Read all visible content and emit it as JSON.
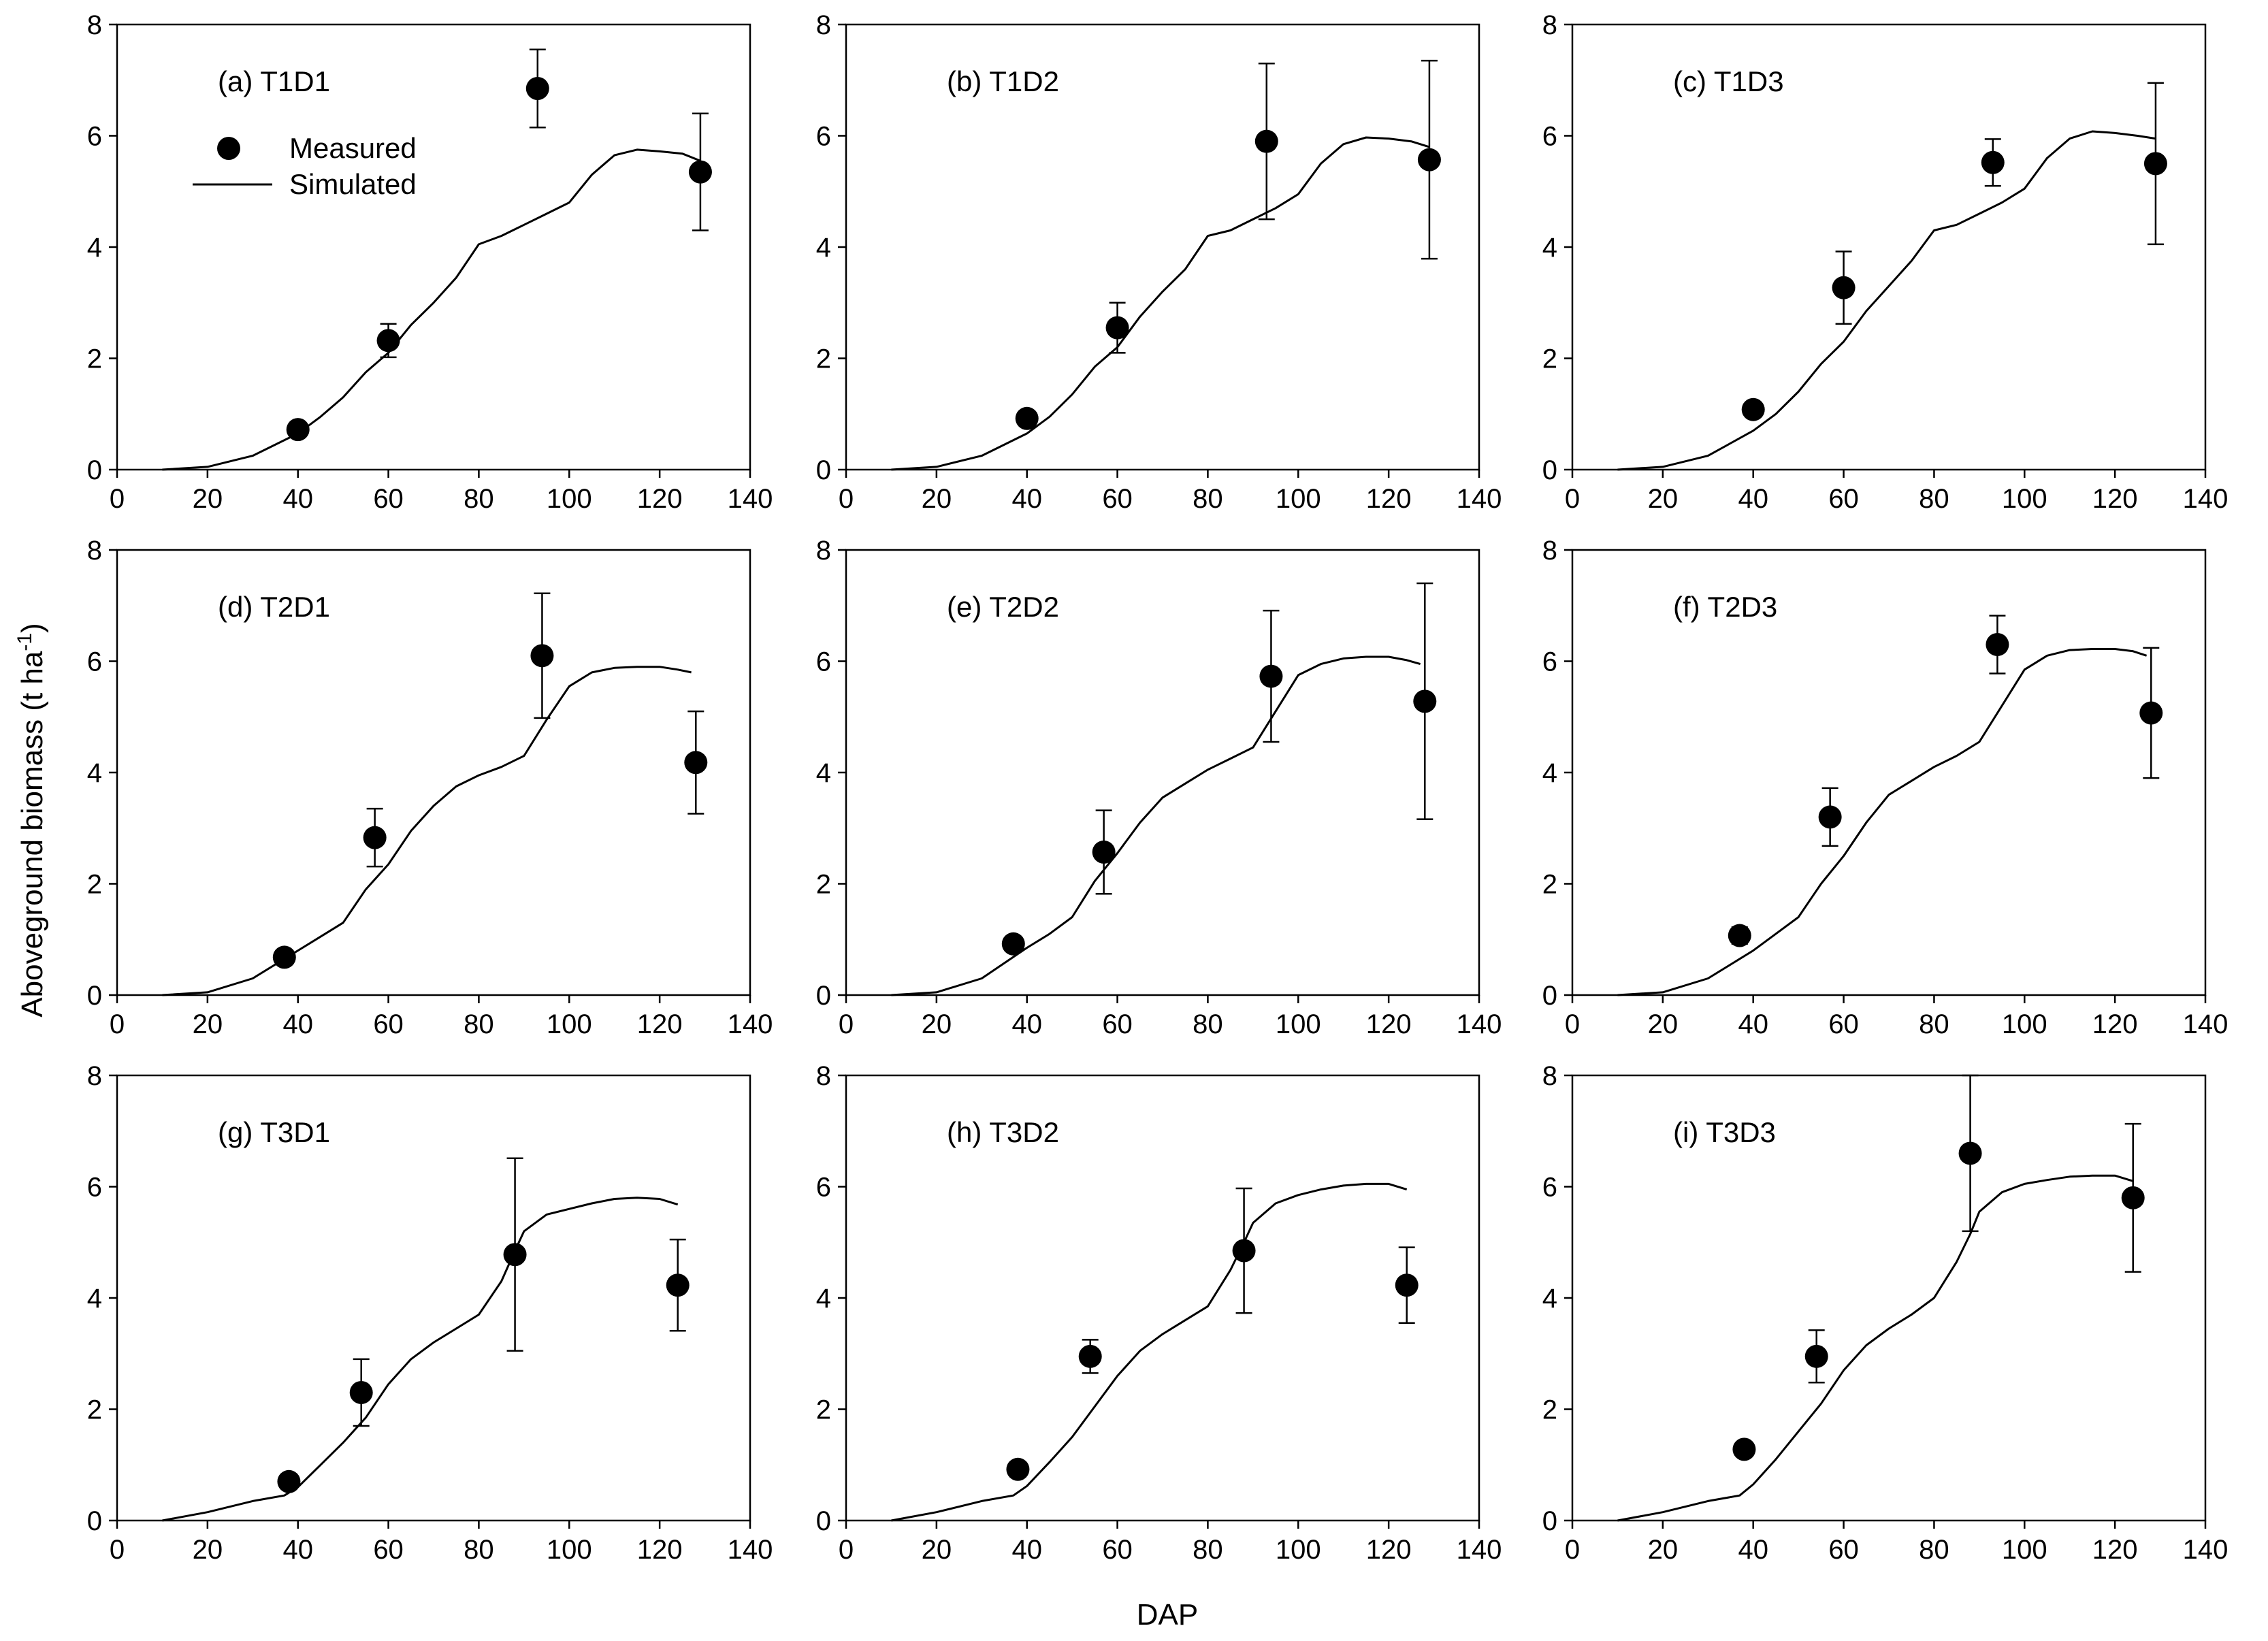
{
  "figure": {
    "ylabel": "Aboveground biomass (t ha",
    "ylabel_sup": "-1",
    "ylabel_close": ")",
    "xlabel": "DAP",
    "legend": {
      "measured": "Measured",
      "simulated": "Simulated"
    }
  },
  "chart_data": [
    {
      "type": "scatter",
      "title": "(a) T1D1",
      "xlim": [
        0,
        140
      ],
      "ylim": [
        0,
        8
      ],
      "xticks": [
        0,
        20,
        40,
        60,
        80,
        100,
        120,
        140
      ],
      "yticks": [
        0,
        2,
        4,
        6,
        8
      ],
      "measured": [
        {
          "x": 40,
          "y": 0.72,
          "err": 0.1
        },
        {
          "x": 60,
          "y": 2.32,
          "err": 0.3
        },
        {
          "x": 93,
          "y": 6.85,
          "err": 0.7
        },
        {
          "x": 129,
          "y": 5.35,
          "err": 1.05
        }
      ],
      "simulated": {
        "x": [
          10,
          20,
          30,
          40,
          45,
          50,
          55,
          60,
          65,
          70,
          75,
          80,
          85,
          90,
          95,
          100,
          105,
          110,
          115,
          120,
          125,
          129
        ],
        "y": [
          0,
          0.05,
          0.25,
          0.65,
          0.95,
          1.3,
          1.75,
          2.1,
          2.6,
          3.0,
          3.45,
          4.05,
          4.2,
          4.4,
          4.6,
          4.8,
          5.3,
          5.65,
          5.75,
          5.72,
          5.68,
          5.55
        ]
      }
    },
    {
      "type": "scatter",
      "title": "(b) T1D2",
      "xlim": [
        0,
        140
      ],
      "ylim": [
        0,
        8
      ],
      "xticks": [
        0,
        20,
        40,
        60,
        80,
        100,
        120,
        140
      ],
      "yticks": [
        0,
        2,
        4,
        6,
        8
      ],
      "measured": [
        {
          "x": 40,
          "y": 0.92,
          "err": 0.1
        },
        {
          "x": 60,
          "y": 2.55,
          "err": 0.45
        },
        {
          "x": 93,
          "y": 5.9,
          "err": 1.4
        },
        {
          "x": 129,
          "y": 5.57,
          "err": 1.78
        }
      ],
      "simulated": {
        "x": [
          10,
          20,
          30,
          40,
          45,
          50,
          55,
          60,
          65,
          70,
          75,
          80,
          85,
          90,
          95,
          100,
          105,
          110,
          115,
          120,
          125,
          129
        ],
        "y": [
          0,
          0.05,
          0.25,
          0.65,
          0.95,
          1.35,
          1.85,
          2.2,
          2.75,
          3.2,
          3.6,
          4.2,
          4.3,
          4.5,
          4.7,
          4.95,
          5.5,
          5.85,
          5.97,
          5.95,
          5.9,
          5.8
        ]
      }
    },
    {
      "type": "scatter",
      "title": "(c) T1D3",
      "xlim": [
        0,
        140
      ],
      "ylim": [
        0,
        8
      ],
      "xticks": [
        0,
        20,
        40,
        60,
        80,
        100,
        120,
        140
      ],
      "yticks": [
        0,
        2,
        4,
        6,
        8
      ],
      "measured": [
        {
          "x": 40,
          "y": 1.08,
          "err": 0.1
        },
        {
          "x": 60,
          "y": 3.27,
          "err": 0.65
        },
        {
          "x": 93,
          "y": 5.52,
          "err": 0.42
        },
        {
          "x": 129,
          "y": 5.5,
          "err": 1.45
        }
      ],
      "simulated": {
        "x": [
          10,
          20,
          30,
          40,
          45,
          50,
          55,
          60,
          65,
          70,
          75,
          80,
          85,
          90,
          95,
          100,
          105,
          110,
          115,
          120,
          125,
          129
        ],
        "y": [
          0,
          0.05,
          0.25,
          0.7,
          1.0,
          1.4,
          1.9,
          2.3,
          2.85,
          3.3,
          3.75,
          4.3,
          4.4,
          4.6,
          4.8,
          5.05,
          5.6,
          5.95,
          6.08,
          6.05,
          6.0,
          5.95
        ]
      }
    },
    {
      "type": "scatter",
      "title": "(d) T2D1",
      "xlim": [
        0,
        140
      ],
      "ylim": [
        0,
        8
      ],
      "xticks": [
        0,
        20,
        40,
        60,
        80,
        100,
        120,
        140
      ],
      "yticks": [
        0,
        2,
        4,
        6,
        8
      ],
      "measured": [
        {
          "x": 37,
          "y": 0.68,
          "err": 0.1
        },
        {
          "x": 57,
          "y": 2.83,
          "err": 0.52
        },
        {
          "x": 94,
          "y": 6.1,
          "err": 1.12
        },
        {
          "x": 128,
          "y": 4.18,
          "err": 0.92
        }
      ],
      "simulated": {
        "x": [
          10,
          20,
          30,
          40,
          45,
          50,
          55,
          60,
          65,
          70,
          75,
          80,
          85,
          90,
          95,
          100,
          105,
          110,
          115,
          120,
          124,
          127
        ],
        "y": [
          0,
          0.05,
          0.3,
          0.8,
          1.05,
          1.3,
          1.9,
          2.35,
          2.95,
          3.4,
          3.75,
          3.95,
          4.1,
          4.3,
          4.95,
          5.55,
          5.8,
          5.88,
          5.9,
          5.9,
          5.85,
          5.8
        ]
      }
    },
    {
      "type": "scatter",
      "title": "(e) T2D2",
      "xlim": [
        0,
        140
      ],
      "ylim": [
        0,
        8
      ],
      "xticks": [
        0,
        20,
        40,
        60,
        80,
        100,
        120,
        140
      ],
      "yticks": [
        0,
        2,
        4,
        6,
        8
      ],
      "measured": [
        {
          "x": 37,
          "y": 0.92,
          "err": 0.1
        },
        {
          "x": 57,
          "y": 2.57,
          "err": 0.75
        },
        {
          "x": 94,
          "y": 5.73,
          "err": 1.18
        },
        {
          "x": 128,
          "y": 5.28,
          "err": 2.12
        }
      ],
      "simulated": {
        "x": [
          10,
          20,
          30,
          40,
          45,
          50,
          55,
          60,
          65,
          70,
          75,
          80,
          85,
          90,
          95,
          100,
          105,
          110,
          115,
          120,
          124,
          127
        ],
        "y": [
          0,
          0.05,
          0.3,
          0.85,
          1.1,
          1.4,
          2.05,
          2.55,
          3.1,
          3.55,
          3.8,
          4.05,
          4.25,
          4.45,
          5.1,
          5.75,
          5.95,
          6.05,
          6.08,
          6.08,
          6.02,
          5.95
        ]
      }
    },
    {
      "type": "scatter",
      "title": "(f) T2D3",
      "xlim": [
        0,
        140
      ],
      "ylim": [
        0,
        8
      ],
      "xticks": [
        0,
        20,
        40,
        60,
        80,
        100,
        120,
        140
      ],
      "yticks": [
        0,
        2,
        4,
        6,
        8
      ],
      "measured": [
        {
          "x": 37,
          "y": 1.07,
          "err": 0.15
        },
        {
          "x": 57,
          "y": 3.2,
          "err": 0.52
        },
        {
          "x": 94,
          "y": 6.3,
          "err": 0.52
        },
        {
          "x": 128,
          "y": 5.07,
          "err": 1.17
        }
      ],
      "simulated": {
        "x": [
          10,
          20,
          30,
          40,
          45,
          50,
          55,
          60,
          65,
          70,
          75,
          80,
          85,
          90,
          95,
          100,
          105,
          110,
          115,
          120,
          124,
          127
        ],
        "y": [
          0,
          0.05,
          0.3,
          0.8,
          1.1,
          1.4,
          2.0,
          2.5,
          3.1,
          3.6,
          3.85,
          4.1,
          4.3,
          4.55,
          5.2,
          5.85,
          6.1,
          6.2,
          6.22,
          6.22,
          6.18,
          6.1
        ]
      }
    },
    {
      "type": "scatter",
      "title": "(g) T3D1",
      "xlim": [
        0,
        140
      ],
      "ylim": [
        0,
        8
      ],
      "xticks": [
        0,
        20,
        40,
        60,
        80,
        100,
        120,
        140
      ],
      "yticks": [
        0,
        2,
        4,
        6,
        8
      ],
      "measured": [
        {
          "x": 38,
          "y": 0.7,
          "err": 0.08
        },
        {
          "x": 54,
          "y": 2.3,
          "err": 0.6
        },
        {
          "x": 88,
          "y": 4.78,
          "err": 1.73
        },
        {
          "x": 124,
          "y": 4.23,
          "err": 0.82
        }
      ],
      "simulated": {
        "x": [
          10,
          20,
          30,
          37,
          40,
          45,
          50,
          55,
          60,
          65,
          70,
          75,
          80,
          85,
          88,
          90,
          95,
          100,
          105,
          110,
          115,
          120,
          124
        ],
        "y": [
          0,
          0.15,
          0.35,
          0.45,
          0.6,
          1.0,
          1.4,
          1.85,
          2.45,
          2.9,
          3.2,
          3.45,
          3.7,
          4.3,
          4.85,
          5.2,
          5.5,
          5.6,
          5.7,
          5.78,
          5.8,
          5.78,
          5.68
        ]
      }
    },
    {
      "type": "scatter",
      "title": "(h) T3D2",
      "xlim": [
        0,
        140
      ],
      "ylim": [
        0,
        8
      ],
      "xticks": [
        0,
        20,
        40,
        60,
        80,
        100,
        120,
        140
      ],
      "yticks": [
        0,
        2,
        4,
        6,
        8
      ],
      "measured": [
        {
          "x": 38,
          "y": 0.92,
          "err": 0.1
        },
        {
          "x": 54,
          "y": 2.95,
          "err": 0.3
        },
        {
          "x": 88,
          "y": 4.85,
          "err": 1.12
        },
        {
          "x": 124,
          "y": 4.23,
          "err": 0.68
        }
      ],
      "simulated": {
        "x": [
          10,
          20,
          30,
          37,
          40,
          45,
          50,
          55,
          60,
          65,
          70,
          75,
          80,
          85,
          88,
          90,
          95,
          100,
          105,
          110,
          115,
          120,
          124
        ],
        "y": [
          0,
          0.15,
          0.35,
          0.45,
          0.62,
          1.05,
          1.5,
          2.05,
          2.6,
          3.05,
          3.35,
          3.6,
          3.85,
          4.5,
          5.0,
          5.35,
          5.7,
          5.85,
          5.95,
          6.02,
          6.05,
          6.05,
          5.95
        ]
      }
    },
    {
      "type": "scatter",
      "title": "(i) T3D3",
      "xlim": [
        0,
        140
      ],
      "ylim": [
        0,
        8
      ],
      "xticks": [
        0,
        20,
        40,
        60,
        80,
        100,
        120,
        140
      ],
      "yticks": [
        0,
        2,
        4,
        6,
        8
      ],
      "measured": [
        {
          "x": 38,
          "y": 1.28,
          "err": 0.1
        },
        {
          "x": 54,
          "y": 2.95,
          "err": 0.47
        },
        {
          "x": 88,
          "y": 6.6,
          "err": 1.4
        },
        {
          "x": 124,
          "y": 5.8,
          "err": 1.33
        }
      ],
      "simulated": {
        "x": [
          10,
          20,
          30,
          37,
          40,
          45,
          50,
          55,
          60,
          65,
          70,
          75,
          80,
          85,
          88,
          90,
          95,
          100,
          105,
          110,
          115,
          120,
          124
        ],
        "y": [
          0,
          0.15,
          0.35,
          0.45,
          0.65,
          1.1,
          1.6,
          2.1,
          2.7,
          3.15,
          3.45,
          3.7,
          4.0,
          4.65,
          5.15,
          5.55,
          5.9,
          6.05,
          6.12,
          6.18,
          6.2,
          6.2,
          6.1
        ]
      }
    }
  ]
}
